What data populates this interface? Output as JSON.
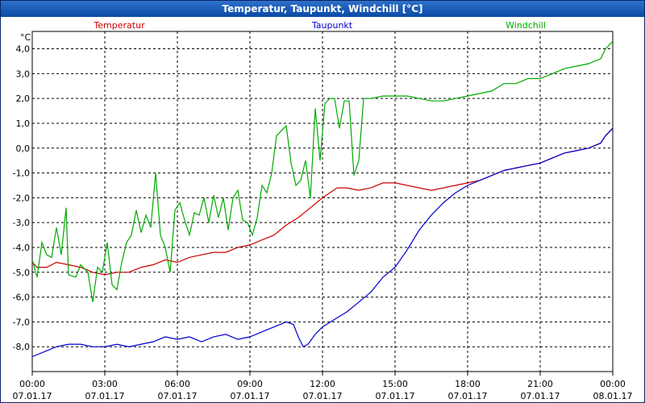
{
  "window": {
    "title": "Temperatur, Taupunkt, Windchill [°C]"
  },
  "chart_data": {
    "type": "line",
    "title": "Temperatur, Taupunkt, Windchill [°C]",
    "ylabel": "°C",
    "ylim": [
      -9.0,
      4.7
    ],
    "xlim": [
      0,
      24
    ],
    "grid": true,
    "legend_placement": "top",
    "y_ticks": [
      {
        "value": 4.0,
        "label": "4,0"
      },
      {
        "value": 3.0,
        "label": "3,0"
      },
      {
        "value": 2.0,
        "label": "2,0"
      },
      {
        "value": 1.0,
        "label": "1,0"
      },
      {
        "value": 0.0,
        "label": "0,0"
      },
      {
        "value": -1.0,
        "label": "-1,0"
      },
      {
        "value": -2.0,
        "label": "-2,0"
      },
      {
        "value": -3.0,
        "label": "-3,0"
      },
      {
        "value": -4.0,
        "label": "-4,0"
      },
      {
        "value": -5.0,
        "label": "-5,0"
      },
      {
        "value": -6.0,
        "label": "-6,0"
      },
      {
        "value": -7.0,
        "label": "-7,0"
      },
      {
        "value": -8.0,
        "label": "-8,0"
      }
    ],
    "x_ticks": [
      {
        "value": 0,
        "time": "00:00",
        "date": "07.01.17"
      },
      {
        "value": 3,
        "time": "03:00",
        "date": "07.01.17"
      },
      {
        "value": 6,
        "time": "06:00",
        "date": "07.01.17"
      },
      {
        "value": 9,
        "time": "09:00",
        "date": "07.01.17"
      },
      {
        "value": 12,
        "time": "12:00",
        "date": "07.01.17"
      },
      {
        "value": 15,
        "time": "15:00",
        "date": "07.01.17"
      },
      {
        "value": 18,
        "time": "18:00",
        "date": "07.01.17"
      },
      {
        "value": 21,
        "time": "21:00",
        "date": "07.01.17"
      },
      {
        "value": 24,
        "time": "00:00",
        "date": "08.01.17"
      }
    ],
    "series": [
      {
        "name": "Temperatur",
        "color": "#cc0000",
        "points": [
          [
            0,
            -4.6
          ],
          [
            0.2,
            -4.8
          ],
          [
            0.6,
            -4.8
          ],
          [
            1.0,
            -4.6
          ],
          [
            1.5,
            -4.7
          ],
          [
            2.0,
            -4.8
          ],
          [
            2.5,
            -5.0
          ],
          [
            3.0,
            -5.1
          ],
          [
            3.5,
            -5.0
          ],
          [
            4.0,
            -5.0
          ],
          [
            4.5,
            -4.8
          ],
          [
            5.0,
            -4.7
          ],
          [
            5.5,
            -4.5
          ],
          [
            6.0,
            -4.6
          ],
          [
            6.5,
            -4.4
          ],
          [
            7.0,
            -4.3
          ],
          [
            7.5,
            -4.2
          ],
          [
            8.0,
            -4.2
          ],
          [
            8.5,
            -4.0
          ],
          [
            9.0,
            -3.9
          ],
          [
            9.5,
            -3.7
          ],
          [
            10.0,
            -3.5
          ],
          [
            10.5,
            -3.1
          ],
          [
            11.0,
            -2.8
          ],
          [
            11.5,
            -2.4
          ],
          [
            12.0,
            -2.0
          ],
          [
            12.3,
            -1.8
          ],
          [
            12.6,
            -1.6
          ],
          [
            13.0,
            -1.6
          ],
          [
            13.5,
            -1.7
          ],
          [
            14.0,
            -1.6
          ],
          [
            14.5,
            -1.4
          ],
          [
            15.0,
            -1.4
          ],
          [
            15.5,
            -1.5
          ],
          [
            16.0,
            -1.6
          ],
          [
            16.5,
            -1.7
          ],
          [
            17.0,
            -1.6
          ],
          [
            17.5,
            -1.5
          ],
          [
            18.0,
            -1.4
          ],
          [
            18.5,
            -1.3
          ],
          [
            19.0,
            -1.1
          ],
          [
            19.5,
            -0.9
          ],
          [
            20.0,
            -0.8
          ],
          [
            20.5,
            -0.7
          ],
          [
            21.0,
            -0.6
          ],
          [
            21.5,
            -0.4
          ],
          [
            22.0,
            -0.2
          ],
          [
            22.5,
            -0.1
          ],
          [
            23.0,
            0.0
          ],
          [
            23.5,
            0.2
          ],
          [
            23.7,
            0.5
          ],
          [
            24.0,
            0.8
          ]
        ]
      },
      {
        "name": "Taupunkt",
        "color": "#0000cc",
        "points": [
          [
            0,
            -8.4
          ],
          [
            0.5,
            -8.2
          ],
          [
            1.0,
            -8.0
          ],
          [
            1.5,
            -7.9
          ],
          [
            2.0,
            -7.9
          ],
          [
            2.5,
            -8.0
          ],
          [
            3.0,
            -8.0
          ],
          [
            3.5,
            -7.9
          ],
          [
            4.0,
            -8.0
          ],
          [
            4.5,
            -7.9
          ],
          [
            5.0,
            -7.8
          ],
          [
            5.5,
            -7.6
          ],
          [
            6.0,
            -7.7
          ],
          [
            6.5,
            -7.6
          ],
          [
            7.0,
            -7.8
          ],
          [
            7.5,
            -7.6
          ],
          [
            8.0,
            -7.5
          ],
          [
            8.5,
            -7.7
          ],
          [
            9.0,
            -7.6
          ],
          [
            9.5,
            -7.4
          ],
          [
            10.0,
            -7.2
          ],
          [
            10.5,
            -7.0
          ],
          [
            10.8,
            -7.1
          ],
          [
            11.0,
            -7.6
          ],
          [
            11.2,
            -8.0
          ],
          [
            11.4,
            -7.9
          ],
          [
            11.7,
            -7.5
          ],
          [
            12.0,
            -7.2
          ],
          [
            12.5,
            -6.9
          ],
          [
            13.0,
            -6.6
          ],
          [
            13.5,
            -6.2
          ],
          [
            14.0,
            -5.8
          ],
          [
            14.5,
            -5.2
          ],
          [
            15.0,
            -4.8
          ],
          [
            15.5,
            -4.1
          ],
          [
            16.0,
            -3.3
          ],
          [
            16.5,
            -2.7
          ],
          [
            17.0,
            -2.2
          ],
          [
            17.5,
            -1.8
          ],
          [
            18.0,
            -1.5
          ],
          [
            18.5,
            -1.3
          ],
          [
            19.0,
            -1.1
          ],
          [
            19.5,
            -0.9
          ],
          [
            20.0,
            -0.8
          ],
          [
            20.5,
            -0.7
          ],
          [
            21.0,
            -0.6
          ],
          [
            21.5,
            -0.4
          ],
          [
            22.0,
            -0.2
          ],
          [
            22.5,
            -0.1
          ],
          [
            23.0,
            0.0
          ],
          [
            23.5,
            0.2
          ],
          [
            23.7,
            0.5
          ],
          [
            24.0,
            0.8
          ]
        ]
      },
      {
        "name": "Windchill",
        "color": "#00aa00",
        "points": [
          [
            0,
            -4.5
          ],
          [
            0.2,
            -5.2
          ],
          [
            0.4,
            -3.8
          ],
          [
            0.6,
            -4.3
          ],
          [
            0.8,
            -4.4
          ],
          [
            1.0,
            -3.2
          ],
          [
            1.2,
            -4.3
          ],
          [
            1.4,
            -2.4
          ],
          [
            1.5,
            -5.1
          ],
          [
            1.8,
            -5.2
          ],
          [
            2.0,
            -4.7
          ],
          [
            2.3,
            -5.0
          ],
          [
            2.5,
            -6.2
          ],
          [
            2.7,
            -4.8
          ],
          [
            2.9,
            -5.0
          ],
          [
            3.1,
            -3.8
          ],
          [
            3.3,
            -5.5
          ],
          [
            3.5,
            -5.7
          ],
          [
            3.7,
            -4.6
          ],
          [
            3.9,
            -3.8
          ],
          [
            4.1,
            -3.5
          ],
          [
            4.3,
            -2.5
          ],
          [
            4.5,
            -3.4
          ],
          [
            4.7,
            -2.7
          ],
          [
            4.9,
            -3.2
          ],
          [
            5.1,
            -1.0
          ],
          [
            5.3,
            -3.5
          ],
          [
            5.5,
            -4.0
          ],
          [
            5.7,
            -5.0
          ],
          [
            5.9,
            -2.5
          ],
          [
            6.1,
            -2.2
          ],
          [
            6.3,
            -2.9
          ],
          [
            6.5,
            -3.5
          ],
          [
            6.7,
            -2.6
          ],
          [
            6.9,
            -2.7
          ],
          [
            7.1,
            -2.0
          ],
          [
            7.3,
            -3.0
          ],
          [
            7.5,
            -1.9
          ],
          [
            7.7,
            -2.8
          ],
          [
            7.9,
            -2.0
          ],
          [
            8.1,
            -3.3
          ],
          [
            8.3,
            -2.0
          ],
          [
            8.5,
            -1.7
          ],
          [
            8.7,
            -2.9
          ],
          [
            8.9,
            -3.0
          ],
          [
            9.1,
            -3.5
          ],
          [
            9.3,
            -2.8
          ],
          [
            9.5,
            -1.5
          ],
          [
            9.7,
            -1.8
          ],
          [
            9.9,
            -1.0
          ],
          [
            10.1,
            0.5
          ],
          [
            10.3,
            0.7
          ],
          [
            10.5,
            0.9
          ],
          [
            10.7,
            -0.6
          ],
          [
            10.9,
            -1.5
          ],
          [
            11.1,
            -1.3
          ],
          [
            11.3,
            -0.5
          ],
          [
            11.5,
            -2.0
          ],
          [
            11.7,
            1.6
          ],
          [
            11.9,
            -0.5
          ],
          [
            12.1,
            1.8
          ],
          [
            12.3,
            2.0
          ],
          [
            12.5,
            2.0
          ],
          [
            12.7,
            0.8
          ],
          [
            12.9,
            1.9
          ],
          [
            13.1,
            1.9
          ],
          [
            13.3,
            -1.1
          ],
          [
            13.5,
            -0.5
          ],
          [
            13.7,
            2.0
          ],
          [
            14.0,
            2.0
          ],
          [
            14.5,
            2.1
          ],
          [
            15.0,
            2.1
          ],
          [
            15.5,
            2.1
          ],
          [
            16.0,
            2.0
          ],
          [
            16.5,
            1.9
          ],
          [
            17.0,
            1.9
          ],
          [
            17.5,
            2.0
          ],
          [
            18.0,
            2.1
          ],
          [
            18.5,
            2.2
          ],
          [
            19.0,
            2.3
          ],
          [
            19.5,
            2.6
          ],
          [
            20.0,
            2.6
          ],
          [
            20.5,
            2.8
          ],
          [
            21.0,
            2.8
          ],
          [
            21.5,
            3.0
          ],
          [
            22.0,
            3.2
          ],
          [
            22.5,
            3.3
          ],
          [
            23.0,
            3.4
          ],
          [
            23.5,
            3.6
          ],
          [
            23.7,
            4.0
          ],
          [
            24.0,
            4.3
          ]
        ]
      }
    ]
  }
}
